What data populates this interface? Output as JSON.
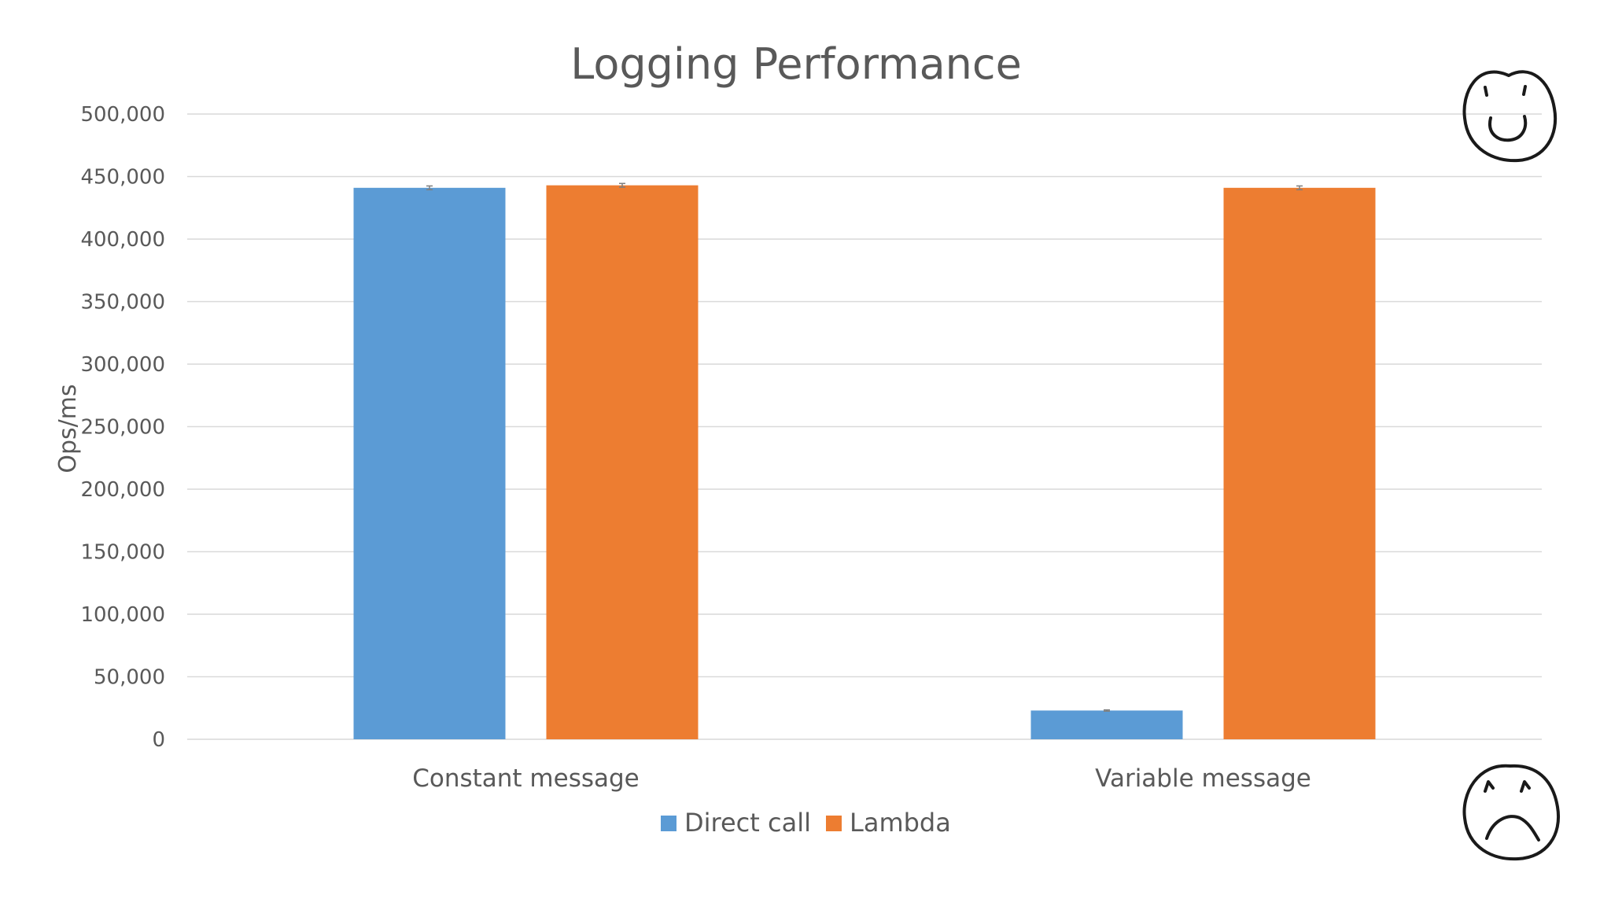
{
  "chart_data": {
    "type": "bar",
    "title": "Logging Performance",
    "xlabel": "",
    "ylabel": "Ops/ms",
    "ylim": [
      0,
      500000
    ],
    "yticks": [
      0,
      50000,
      100000,
      150000,
      200000,
      250000,
      300000,
      350000,
      400000,
      450000,
      500000
    ],
    "ytick_labels": [
      "0",
      "50,000",
      "100,000",
      "150,000",
      "200,000",
      "250,000",
      "300,000",
      "350,000",
      "400,000",
      "450,000",
      "500,000"
    ],
    "categories": [
      "Constant message",
      "Variable message"
    ],
    "series": [
      {
        "name": "Direct call",
        "color": "#5b9bd5",
        "values": [
          441000,
          23000
        ],
        "error": [
          1500,
          500
        ]
      },
      {
        "name": "Lambda",
        "color": "#ed7d31",
        "values": [
          443000,
          441000
        ],
        "error": [
          1500,
          1500
        ]
      }
    ],
    "grid": true,
    "legend_position": "bottom",
    "decorations": [
      "smiley-face-icon",
      "frowny-face-icon"
    ]
  }
}
